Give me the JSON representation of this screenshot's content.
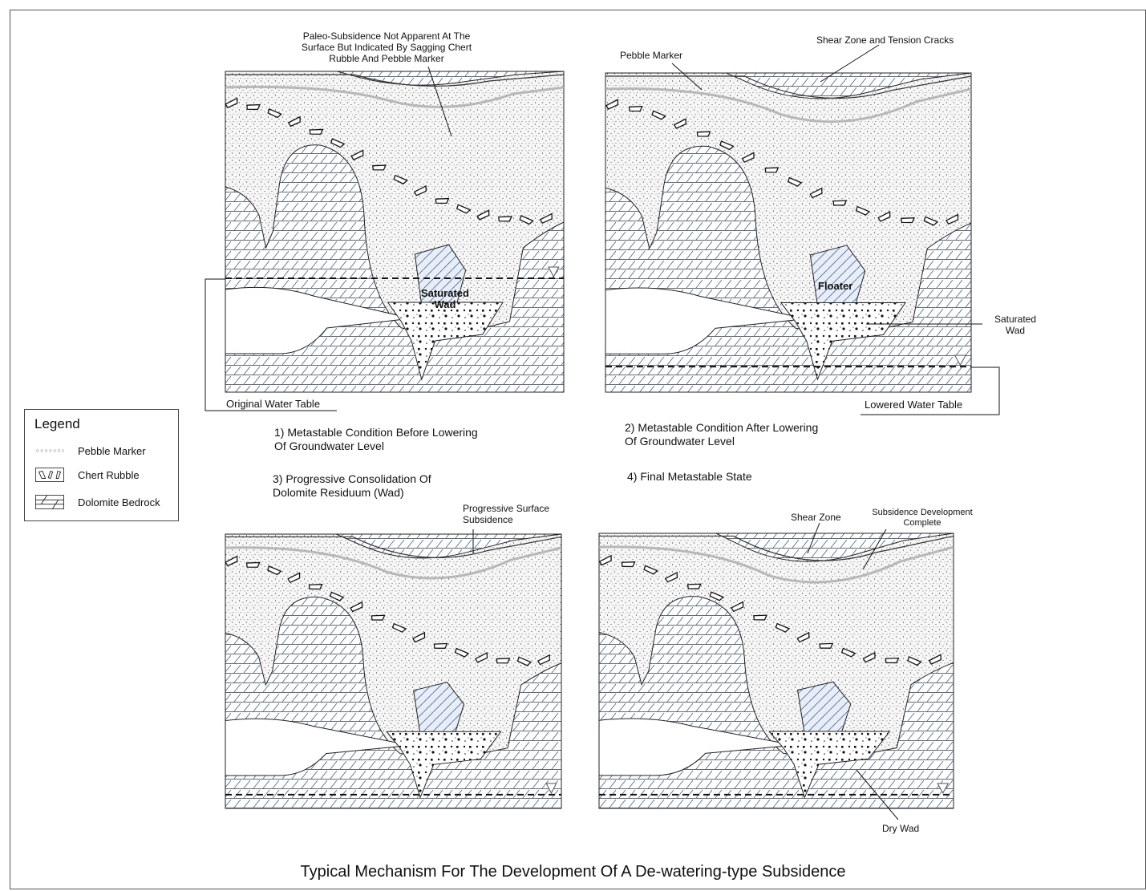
{
  "title": "Typical Mechanism For The Development Of A De-watering-type Subsidence",
  "legend": {
    "heading": "Legend",
    "items": [
      {
        "label": "Pebble Marker",
        "icon": "pebble-marker-swatch"
      },
      {
        "label": "Chert Rubble",
        "icon": "chert-rubble-swatch"
      },
      {
        "label": "Dolomite Bedrock",
        "icon": "dolomite-bedrock-swatch"
      }
    ]
  },
  "captions": {
    "p1_line1": "1) Metastable Condition Before Lowering",
    "p1_line2": "Of Groundwater Level",
    "p2_line1": "2) Metastable Condition After Lowering",
    "p2_line2": "Of Groundwater Level",
    "p3_line1": "3) Progressive Consolidation Of",
    "p3_line2": "Dolomite Residuum (Wad)",
    "p4": "4) Final Metastable State"
  },
  "annotations": {
    "paleo_1": "Paleo-Subsidence Not Apparent At The",
    "paleo_2": "Surface But Indicated By Sagging Chert",
    "paleo_3": "Rubble And Pebble Marker",
    "pebble_marker": "Pebble Marker",
    "shear_tension": "Shear Zone and Tension Cracks",
    "saturated_wad_1": "Saturated",
    "saturated_wad_2": "Wad",
    "floater": "Floater",
    "saturated_wad_b1": "Saturated",
    "saturated_wad_b2": "Wad",
    "original_water_table": "Original Water Table",
    "lowered_water_table": "Lowered Water Table",
    "progressive_1": "Progressive Surface",
    "progressive_2": "Subsidence",
    "shear_zone": "Shear Zone",
    "subsidence_complete_1": "Subsidence Development",
    "subsidence_complete_2": "Complete",
    "dry_wad": "Dry Wad"
  },
  "colors": {
    "bedrock_line": "#4a6fa8",
    "soil_dot": "#222222",
    "soil_bg": "#f4f4f4",
    "pebble": "#9a9a9a",
    "outline": "#222222"
  }
}
